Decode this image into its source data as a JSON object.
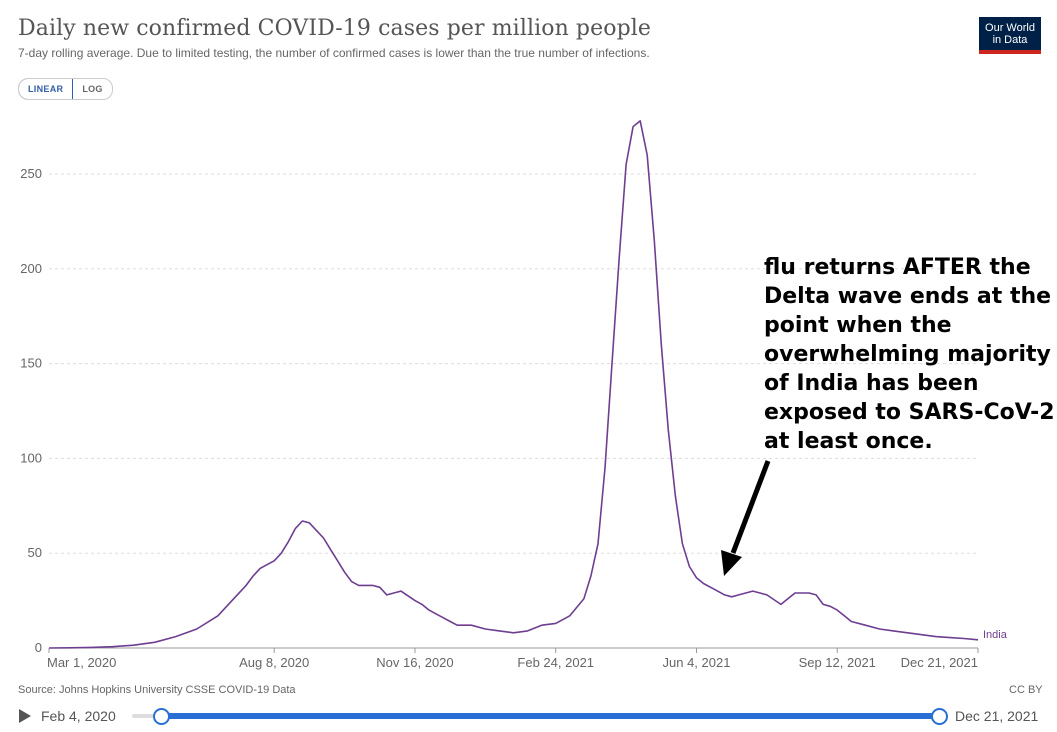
{
  "header": {
    "title": "Daily new confirmed COVID-19 cases per million people",
    "subtitle": "7-day rolling average. Due to limited testing, the number of confirmed cases is lower than the true number of infections.",
    "logo_line1": "Our World",
    "logo_line2": "in Data"
  },
  "controls": {
    "linear_label": "LINEAR",
    "log_label": "LOG"
  },
  "annotation": "flu returns AFTER the Delta wave ends at the point when the overwhelming majority of India has been exposed to SARS-CoV-2 at least once.",
  "footer": {
    "source": "Source: Johns Hopkins University CSSE COVID-19 Data",
    "license": "CC BY"
  },
  "timeline": {
    "start_label": "Feb 4, 2020",
    "end_label": "Dec 21, 2021"
  },
  "colors": {
    "series": "#6d3e91",
    "accent": "#2a6fd4",
    "logo_bg": "#002147",
    "logo_stripe": "#ce261e"
  },
  "chart_data": {
    "type": "line",
    "title": "Daily new confirmed COVID-19 cases per million people",
    "ylim": [
      0,
      280
    ],
    "yticks": [
      0,
      50,
      100,
      150,
      200,
      250
    ],
    "x_range_days": [
      0,
      660
    ],
    "xtick_labels": [
      {
        "label": "Mar 1, 2020",
        "day": 0
      },
      {
        "label": "Aug 8, 2020",
        "day": 160
      },
      {
        "label": "Nov 16, 2020",
        "day": 260
      },
      {
        "label": "Feb 24, 2021",
        "day": 360
      },
      {
        "label": "Jun 4, 2021",
        "day": 460
      },
      {
        "label": "Sep 12, 2021",
        "day": 560
      },
      {
        "label": "Dec 21, 2021",
        "day": 660
      }
    ],
    "series": [
      {
        "name": "India",
        "x": [
          0,
          15,
          30,
          45,
          60,
          75,
          90,
          105,
          120,
          130,
          140,
          145,
          150,
          155,
          160,
          165,
          170,
          175,
          180,
          185,
          190,
          195,
          200,
          205,
          210,
          215,
          220,
          225,
          230,
          235,
          240,
          250,
          260,
          265,
          270,
          275,
          280,
          285,
          290,
          300,
          310,
          320,
          330,
          340,
          350,
          360,
          370,
          380,
          385,
          390,
          395,
          400,
          405,
          410,
          415,
          420,
          425,
          430,
          435,
          440,
          445,
          450,
          455,
          460,
          465,
          470,
          475,
          480,
          485,
          490,
          500,
          510,
          520,
          530,
          540,
          545,
          550,
          555,
          560,
          565,
          570,
          580,
          590,
          600,
          610,
          620,
          630,
          640,
          650,
          660
        ],
        "values": [
          0,
          0.1,
          0.3,
          0.7,
          1.5,
          3,
          6,
          10,
          17,
          25,
          33,
          38,
          42,
          44,
          46,
          50,
          56,
          63,
          67,
          66,
          62,
          58,
          52,
          46,
          40,
          35,
          33,
          33,
          33,
          32,
          28,
          30,
          25,
          23,
          20,
          18,
          16,
          14,
          12,
          12,
          10,
          9,
          8,
          9,
          12,
          13,
          17,
          26,
          38,
          55,
          95,
          150,
          205,
          255,
          275,
          278,
          260,
          215,
          160,
          115,
          80,
          55,
          43,
          37,
          34,
          32,
          30,
          28,
          27,
          28,
          30,
          28,
          23,
          29,
          29,
          28,
          23,
          22,
          20,
          17,
          14,
          12,
          10,
          9,
          8,
          7,
          6,
          5.5,
          5,
          4.3
        ]
      }
    ]
  }
}
